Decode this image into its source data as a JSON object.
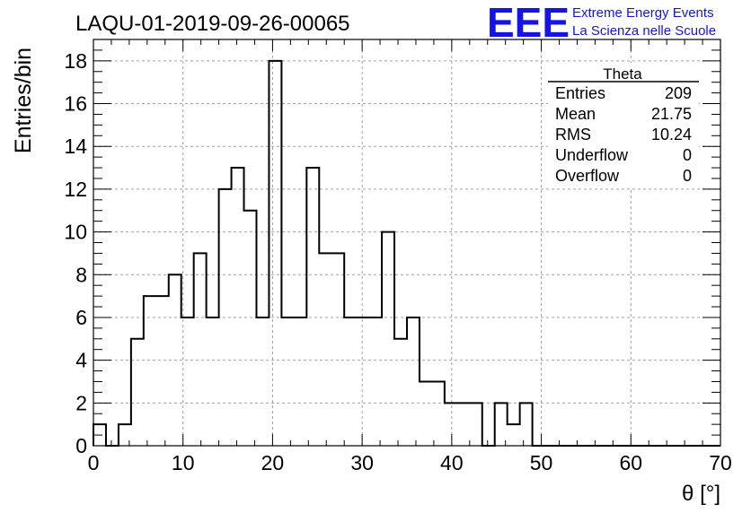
{
  "chart_data": {
    "type": "bar",
    "style": "step-histogram",
    "title": "LAQU-01-2019-09-26-00065",
    "xlabel": "θ [°]",
    "ylabel": "Entries/bin",
    "xlim": [
      0,
      70
    ],
    "ylim": [
      0,
      19
    ],
    "x_ticks": [
      0,
      10,
      20,
      30,
      40,
      50,
      60,
      70
    ],
    "y_ticks": [
      0,
      2,
      4,
      6,
      8,
      10,
      12,
      14,
      16,
      18
    ],
    "bin_width": 1.4,
    "bin_edges_start": 0,
    "values": [
      1,
      0,
      1,
      5,
      7,
      7,
      8,
      6,
      9,
      6,
      12,
      13,
      11,
      6,
      18,
      6,
      6,
      13,
      9,
      9,
      6,
      6,
      6,
      10,
      5,
      6,
      3,
      3,
      2,
      2,
      2,
      0,
      2,
      1,
      2,
      0,
      0,
      0,
      0,
      0,
      0,
      0,
      0,
      0,
      0,
      0,
      0,
      0,
      0,
      0
    ],
    "grid": true,
    "stats_box": {
      "title": "Theta",
      "rows": [
        {
          "label": "Entries",
          "value": "209"
        },
        {
          "label": "Mean",
          "value": "21.75"
        },
        {
          "label": "RMS",
          "value": "10.24"
        },
        {
          "label": "Underflow",
          "value": "0"
        },
        {
          "label": "Overflow",
          "value": "0"
        }
      ]
    }
  },
  "logo": {
    "text": "EEE",
    "line1": "Extreme Energy Events",
    "line2": "La Scienza nelle Scuole",
    "color": "#1414e6"
  }
}
